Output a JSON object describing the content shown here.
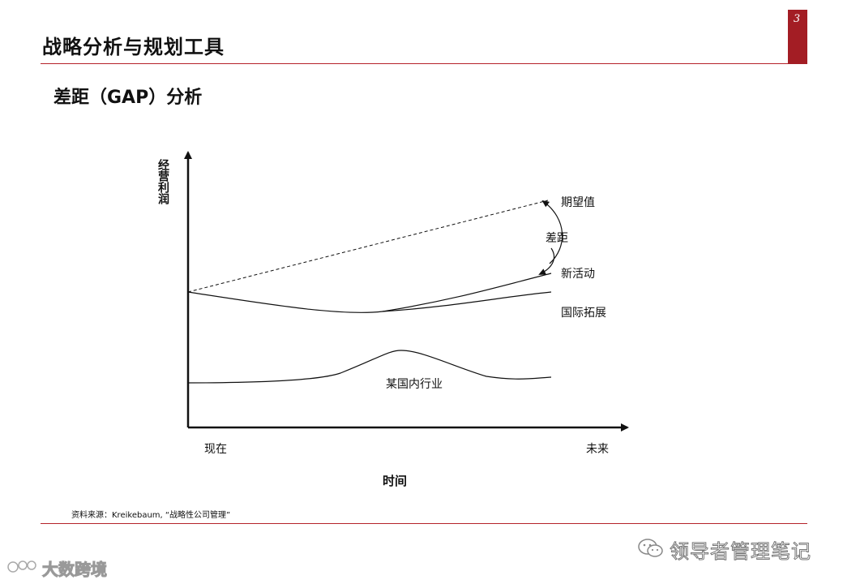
{
  "header": {
    "title": "战略分析与规划工具",
    "page_number": "3",
    "accent_color": "#a31d24"
  },
  "subtitle": "差距（GAP）分析",
  "diagram": {
    "y_axis_label": "经营利润",
    "x_axis_label": "时间",
    "x_start_label": "现在",
    "x_end_label": "未来",
    "expected_label": "期望值",
    "gap_label": "差距",
    "new_activity_label": "新活动",
    "international_label": "国际拓展",
    "domestic_label": "某国内行业"
  },
  "footer": {
    "source": "资料来源：Kreikebaum, “战略性公司管理”"
  },
  "watermarks": {
    "right_text": "领导者管理笔记",
    "left_text": "大数跨境"
  }
}
